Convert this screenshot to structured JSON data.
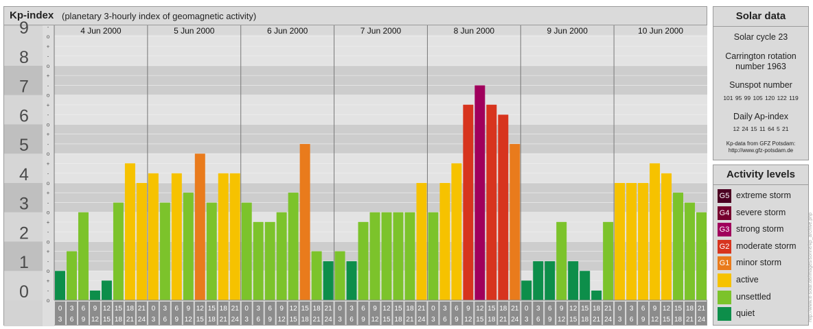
{
  "header": {
    "title": "Kp-index",
    "subtitle": "(planetary 3-hourly index of geomagnetic activity)"
  },
  "chart_data": {
    "type": "bar",
    "title": "Kp-index",
    "subtitle": "(planetary 3-hourly index of geomagnetic activity)",
    "y_ticks": [
      "0",
      "1",
      "2",
      "3",
      "4",
      "5",
      "6",
      "7",
      "8",
      "9"
    ],
    "sub_ticks": [
      "o",
      "-",
      "+"
    ],
    "ylim": [
      0,
      9.33
    ],
    "days": [
      "4 Jun 2000",
      "5 Jun 2000",
      "6 Jun 2000",
      "7 Jun 2000",
      "8 Jun 2000",
      "9 Jun 2000",
      "10 Jun 2000"
    ],
    "interval_starts": [
      "0",
      "3",
      "6",
      "9",
      "12",
      "15",
      "18",
      "21"
    ],
    "interval_ends": [
      "3",
      "6",
      "9",
      "12",
      "15",
      "18",
      "21",
      "24"
    ],
    "values": [
      [
        1.0,
        1.67,
        3.0,
        0.33,
        0.67,
        3.33,
        4.67,
        4.0
      ],
      [
        4.33,
        3.33,
        4.33,
        3.67,
        5.0,
        3.33,
        4.33,
        4.33
      ],
      [
        3.33,
        2.67,
        2.67,
        3.0,
        3.67,
        5.33,
        1.67,
        1.33
      ],
      [
        1.67,
        1.33,
        2.67,
        3.0,
        3.0,
        3.0,
        3.0,
        4.0
      ],
      [
        3.0,
        4.0,
        4.67,
        6.67,
        7.33,
        6.67,
        6.33,
        5.33
      ],
      [
        0.67,
        1.33,
        1.33,
        2.67,
        1.33,
        1.0,
        0.33,
        2.67
      ],
      [
        4.0,
        4.0,
        4.0,
        4.67,
        4.33,
        3.67,
        3.33,
        3.0
      ]
    ],
    "level_colors": {
      "quiet": "#0d8e4a",
      "unsettled": "#7cc32b",
      "active": "#f6c200",
      "G1": "#e97b1c",
      "G2": "#d7341e",
      "G3": "#a0005c",
      "G4": "#76002e",
      "G5": "#4c0022"
    },
    "grid": true
  },
  "solar": {
    "title": "Solar data",
    "cycle": "Solar cycle 23",
    "carrington_line1": "Carrington rotation",
    "carrington_line2": "number 1963",
    "sunspot_label": "Sunspot number",
    "sunspot_values": "101 95 99 105 120 122 119",
    "ap_label": "Daily Ap-index",
    "ap_values": "12 24 15 11 64 5 21",
    "source_line1": "Kp-data from GFZ Potsdam:",
    "source_line2": "http://www.gfz-potsdam.de"
  },
  "activity": {
    "title": "Activity levels",
    "items": [
      {
        "badge": "G5",
        "label": "extreme storm",
        "color": "#4c0022"
      },
      {
        "badge": "G4",
        "label": "severe storm",
        "color": "#76002e"
      },
      {
        "badge": "G3",
        "label": "strong storm",
        "color": "#a0005c"
      },
      {
        "badge": "G2",
        "label": "moderate storm",
        "color": "#d7341e"
      },
      {
        "badge": "G1",
        "label": "minor storm",
        "color": "#e97b1c"
      },
      {
        "badge": "",
        "label": "active",
        "color": "#f6c200"
      },
      {
        "badge": "",
        "label": "unsettled",
        "color": "#7cc32b"
      },
      {
        "badge": "",
        "label": "quiet",
        "color": "#0d8e4a"
      }
    ]
  },
  "watermark": "http://www.tt-solar.de/images/sonne/kp_archive.php"
}
